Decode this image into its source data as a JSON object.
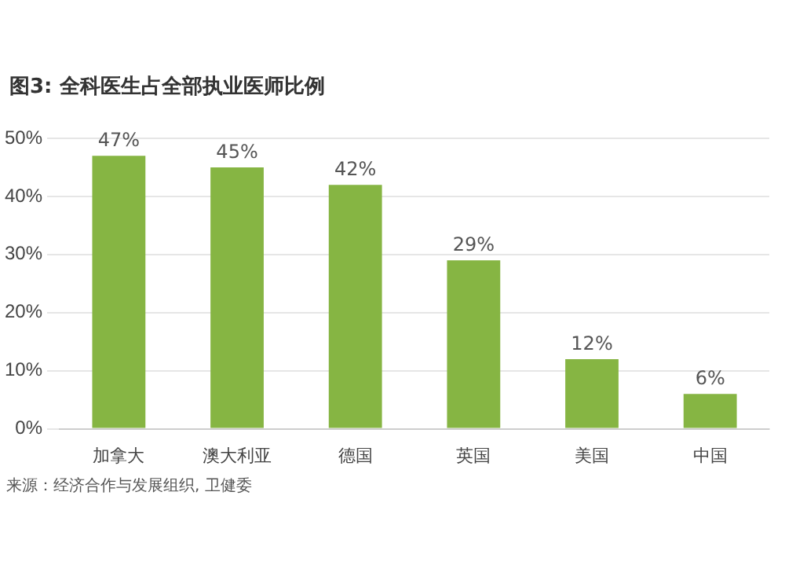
{
  "chart_data": {
    "type": "bar",
    "title": "图3: 全科医生占全部执业医师比例",
    "categories": [
      "加拿大",
      "澳大利亚",
      "德国",
      "英国",
      "美国",
      "中国"
    ],
    "values": [
      47,
      45,
      42,
      29,
      12,
      6
    ],
    "value_labels": [
      "47%",
      "45%",
      "42%",
      "29%",
      "12%",
      "6%"
    ],
    "color": "#86b543",
    "ylim": [
      0,
      50
    ],
    "yticks": [
      {
        "value": 0,
        "label": "0%"
      },
      {
        "value": 10,
        "label": "10%"
      },
      {
        "value": 20,
        "label": "20%"
      },
      {
        "value": 30,
        "label": "30%"
      },
      {
        "value": 40,
        "label": "40%"
      },
      {
        "value": 50,
        "label": "50%"
      }
    ],
    "grid": "y",
    "annotations": [
      "来源：经济合作与发展组织, 卫健委"
    ]
  }
}
